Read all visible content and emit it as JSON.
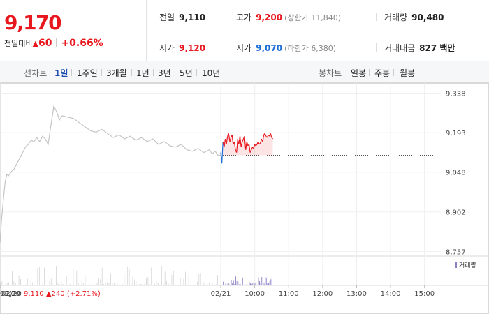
{
  "summary": {
    "price": "9,170",
    "change_label": "전일대비",
    "change_symbol": "▲",
    "change_value": "60",
    "change_pct": "+0.66%"
  },
  "stats": {
    "prev_close": {
      "label": "전일",
      "value": "9,110"
    },
    "open": {
      "label": "시가",
      "value": "9,120"
    },
    "high": {
      "label": "고가",
      "value": "9,200",
      "limit": "(상한가 11,840)"
    },
    "low": {
      "label": "저가",
      "value": "9,070",
      "limit": "(하한가 6,380)"
    },
    "volume": {
      "label": "거래량",
      "value": "90,480"
    },
    "amount": {
      "label": "거래대금",
      "value": "827 백만"
    }
  },
  "tabs": {
    "line_label": "선차트",
    "line_items": [
      "1일",
      "1주일",
      "3개월",
      "1년",
      "3년",
      "5년",
      "10년"
    ],
    "active": "1일",
    "candle_label": "봉차트",
    "candle_items": [
      "일봉",
      "주봉",
      "월봉"
    ]
  },
  "legend": {
    "volume": "거래량"
  },
  "prev_day": {
    "date": "02/20",
    "close": "9,110",
    "symbol": "▲",
    "change": "240",
    "pct": "(+2.71%)"
  },
  "colors": {
    "up": "#e8171d",
    "down": "#1d6ed8",
    "prev_line": "#c4c4c4",
    "volume_bar": "#8c7ec7"
  },
  "chart_data": {
    "type": "line",
    "y_ticks": [
      "9,338",
      "9,193",
      "9,048",
      "8,902",
      "8,757"
    ],
    "y_tick_values": [
      9338,
      9193,
      9048,
      8902,
      8757
    ],
    "ylim": [
      8740,
      9370
    ],
    "x_ticks": [
      "02/20",
      "02/21",
      "10:00",
      "11:00",
      "12:00",
      "13:00",
      "14:00",
      "15:00"
    ],
    "x_tick_minutes": [
      -390,
      0,
      60,
      120,
      180,
      240,
      300,
      360
    ],
    "xlim": [
      -390,
      390
    ],
    "reference": {
      "name": "전일",
      "value": 9110
    },
    "series": [
      {
        "values_minutes": [
          -390,
          -387,
          -384,
          -381,
          -378,
          -375,
          -370,
          -365,
          -360,
          -355,
          -350,
          -345,
          -340,
          -335,
          -330,
          -325,
          -320,
          -315,
          -310,
          -305,
          -300,
          -295,
          -290,
          -285,
          -280,
          -270,
          -260,
          -250,
          -240,
          -230,
          -220,
          -210,
          -200,
          -190,
          -180,
          -170,
          -160,
          -150,
          -140,
          -130,
          -120,
          -110,
          -100,
          -90,
          -80,
          -70,
          -60,
          -50,
          -40,
          -30,
          -20,
          -15,
          -10,
          -5,
          0
        ],
        "values": [
          8790,
          8880,
          8950,
          9010,
          9040,
          9035,
          9050,
          9060,
          9080,
          9100,
          9120,
          9140,
          9150,
          9165,
          9160,
          9175,
          9160,
          9180,
          9170,
          9150,
          9220,
          9290,
          9270,
          9240,
          9255,
          9250,
          9245,
          9230,
          9215,
          9200,
          9195,
          9205,
          9190,
          9175,
          9185,
          9170,
          9180,
          9165,
          9175,
          9160,
          9170,
          9150,
          9160,
          9145,
          9140,
          9150,
          9130,
          9125,
          9135,
          9120,
          9130,
          9115,
          9125,
          9110,
          9110
        ]
      },
      {
        "values_minutes": [
          0,
          2,
          4,
          6,
          8,
          10,
          12,
          14,
          16,
          18,
          20,
          22,
          24,
          26,
          28,
          30,
          32,
          34,
          36,
          38,
          40,
          42,
          44,
          46,
          48,
          50,
          52,
          54,
          56,
          58,
          60,
          62,
          64,
          66,
          68,
          70,
          72,
          74,
          76,
          78,
          80,
          82,
          84,
          86,
          88,
          90,
          92
        ],
        "values": [
          9120,
          9080,
          9160,
          9140,
          9170,
          9150,
          9180,
          9190,
          9160,
          9175,
          9185,
          9150,
          9160,
          9130,
          9120,
          9170,
          9150,
          9180,
          9140,
          9160,
          9170,
          9180,
          9130,
          9160,
          9145,
          9150,
          9120,
          9130,
          9140,
          9135,
          9150,
          9145,
          9150,
          9160,
          9150,
          9155,
          9170,
          9160,
          9185,
          9190,
          9180,
          9175,
          9185,
          9180,
          9190,
          9175,
          9170
        ]
      }
    ]
  }
}
